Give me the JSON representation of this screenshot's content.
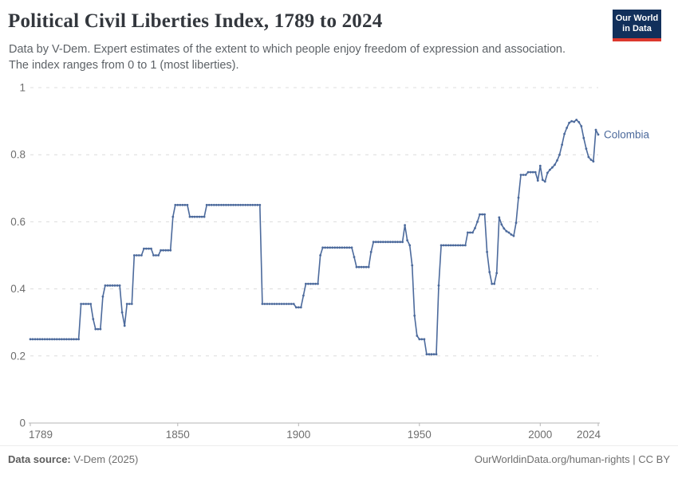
{
  "header": {
    "title": "Political Civil Liberties Index, 1789 to 2024",
    "subtitle_lines": [
      "Data by V-Dem. Expert estimates of the extent to which people enjoy freedom of expression and association.",
      "The index ranges from 0 to 1 (most liberties)."
    ],
    "logo": {
      "line1": "Our World",
      "line2": "in Data",
      "bg_color": "#12305b",
      "stripe_color": "#dc382d"
    }
  },
  "chart_data": {
    "type": "line",
    "title": "Political Civil Liberties Index, 1789 to 2024",
    "entity_label": "Colombia",
    "x_domain": [
      1789,
      2024
    ],
    "ylim": [
      0,
      1
    ],
    "x_ticks": [
      1789,
      1850,
      1900,
      1950,
      2000,
      2024
    ],
    "x_tick_labels": [
      "1789",
      "1850",
      "1900",
      "1950",
      "2000",
      "2024"
    ],
    "y_ticks": [
      0,
      0.2,
      0.4,
      0.6,
      0.8,
      1
    ],
    "y_tick_labels": [
      "0",
      "0.2",
      "0.4",
      "0.6",
      "0.8",
      "1"
    ],
    "grid": true,
    "grid_style": "dashed",
    "legend_position": "line-end-label",
    "line_color": "#4c6a9c",
    "grid_color": "#dcdcdc",
    "axis_color": "#b5b5b5",
    "tick_label_color": "#6e6e6e",
    "series": [
      {
        "name": "Colombia",
        "start_year": 1789,
        "end_year": 2024,
        "values": [
          0.25,
          0.25,
          0.25,
          0.25,
          0.25,
          0.25,
          0.25,
          0.25,
          0.25,
          0.25,
          0.25,
          0.25,
          0.25,
          0.25,
          0.25,
          0.25,
          0.25,
          0.25,
          0.25,
          0.25,
          0.25,
          0.355,
          0.355,
          0.355,
          0.355,
          0.355,
          0.31,
          0.28,
          0.28,
          0.28,
          0.377,
          0.41,
          0.41,
          0.41,
          0.41,
          0.41,
          0.41,
          0.41,
          0.33,
          0.29,
          0.355,
          0.355,
          0.355,
          0.5,
          0.5,
          0.5,
          0.5,
          0.52,
          0.52,
          0.52,
          0.52,
          0.5,
          0.5,
          0.5,
          0.515,
          0.515,
          0.515,
          0.515,
          0.515,
          0.615,
          0.65,
          0.65,
          0.65,
          0.65,
          0.65,
          0.65,
          0.615,
          0.615,
          0.615,
          0.615,
          0.615,
          0.615,
          0.615,
          0.65,
          0.65,
          0.65,
          0.65,
          0.65,
          0.65,
          0.65,
          0.65,
          0.65,
          0.65,
          0.65,
          0.65,
          0.65,
          0.65,
          0.65,
          0.65,
          0.65,
          0.65,
          0.65,
          0.65,
          0.65,
          0.65,
          0.65,
          0.355,
          0.355,
          0.355,
          0.355,
          0.355,
          0.355,
          0.355,
          0.355,
          0.355,
          0.355,
          0.355,
          0.355,
          0.355,
          0.355,
          0.345,
          0.345,
          0.345,
          0.38,
          0.415,
          0.415,
          0.415,
          0.415,
          0.415,
          0.415,
          0.5,
          0.523,
          0.523,
          0.523,
          0.523,
          0.523,
          0.523,
          0.523,
          0.523,
          0.523,
          0.523,
          0.523,
          0.523,
          0.523,
          0.495,
          0.465,
          0.465,
          0.465,
          0.465,
          0.465,
          0.465,
          0.51,
          0.54,
          0.54,
          0.54,
          0.54,
          0.54,
          0.54,
          0.54,
          0.54,
          0.54,
          0.54,
          0.54,
          0.54,
          0.54,
          0.59,
          0.545,
          0.53,
          0.47,
          0.32,
          0.26,
          0.25,
          0.25,
          0.25,
          0.205,
          0.205,
          0.205,
          0.205,
          0.205,
          0.41,
          0.53,
          0.53,
          0.53,
          0.53,
          0.53,
          0.53,
          0.53,
          0.53,
          0.53,
          0.53,
          0.53,
          0.568,
          0.568,
          0.568,
          0.581,
          0.6,
          0.622,
          0.622,
          0.622,
          0.51,
          0.45,
          0.415,
          0.415,
          0.447,
          0.613,
          0.592,
          0.58,
          0.572,
          0.568,
          0.562,
          0.558,
          0.597,
          0.672,
          0.74,
          0.74,
          0.74,
          0.748,
          0.748,
          0.748,
          0.748,
          0.723,
          0.767,
          0.725,
          0.72,
          0.746,
          0.755,
          0.762,
          0.77,
          0.783,
          0.8,
          0.83,
          0.862,
          0.88,
          0.895,
          0.9,
          0.898,
          0.904,
          0.897,
          0.885,
          0.85,
          0.818,
          0.793,
          0.785,
          0.78,
          0.874,
          0.86
        ]
      }
    ]
  },
  "footer": {
    "source_label": "Data source:",
    "source_value": "V-Dem (2025)",
    "credit": "OurWorldinData.org/human-rights | CC BY"
  }
}
